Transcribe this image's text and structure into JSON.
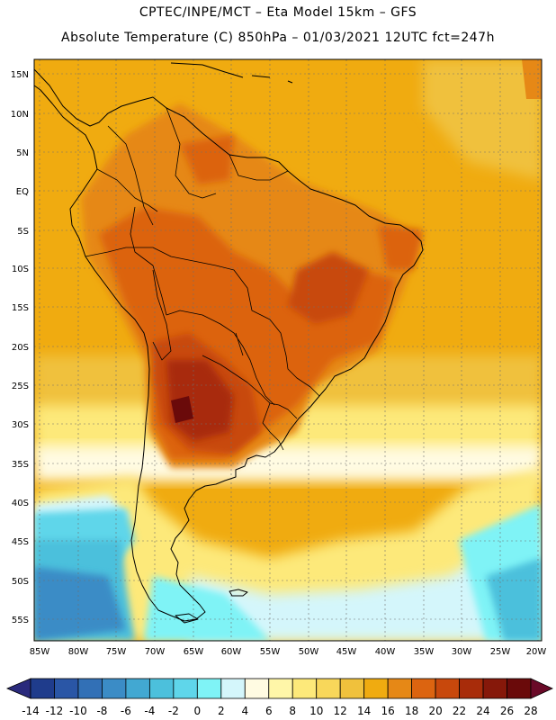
{
  "header": {
    "line1": "CPTEC/INPE/MCT –  Eta Model 15km – GFS",
    "line2": "Absolute Temperature (C) 850hPa – 01/03/2021 12UTC fct=247h"
  },
  "map": {
    "lat_labels": [
      "15N",
      "10N",
      "5N",
      "EQ",
      "5S",
      "10S",
      "15S",
      "20S",
      "25S",
      "30S",
      "35S",
      "40S",
      "45S",
      "50S",
      "55S"
    ],
    "lon_labels": [
      "85W",
      "80W",
      "75W",
      "70W",
      "65W",
      "60W",
      "55W",
      "50W",
      "45W",
      "40W",
      "35W",
      "30W",
      "25W",
      "20W"
    ]
  },
  "colorbar": {
    "labels": [
      "-14",
      "-12",
      "-10",
      "-8",
      "-6",
      "-4",
      "-2",
      "0",
      "2",
      "4",
      "6",
      "8",
      "10",
      "12",
      "14",
      "16",
      "18",
      "20",
      "22",
      "24",
      "26",
      "28"
    ],
    "colors": [
      "#1f3c8c",
      "#2a56a6",
      "#3270b6",
      "#3b8cc6",
      "#42a8d2",
      "#4cc0dc",
      "#5fd6ea",
      "#7ff3f6",
      "#d4f6fb",
      "#fffbe2",
      "#fff6a8",
      "#fde97a",
      "#f8d75a",
      "#f0c13c",
      "#f0ab10",
      "#e68816",
      "#dc6410",
      "#c8480c",
      "#a82c0a",
      "#86180a",
      "#6a0a0a"
    ],
    "left_arrow_color": "#2a2a7c",
    "right_arrow_color": "#6a0a28"
  }
}
